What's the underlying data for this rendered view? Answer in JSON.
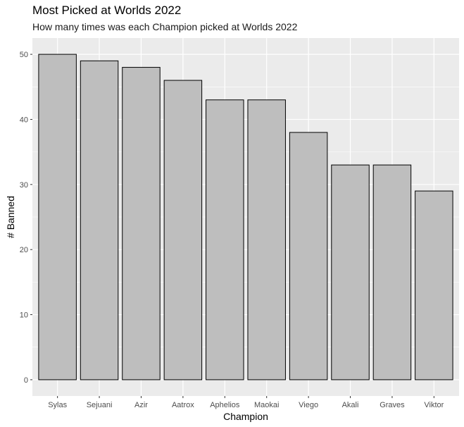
{
  "chart_data": {
    "type": "bar",
    "title": "Most Picked at Worlds 2022",
    "subtitle": "How many times was each Champion picked at Worlds 2022",
    "xlabel": "Champion",
    "ylabel": "# Banned",
    "categories": [
      "Sylas",
      "Sejuani",
      "Azir",
      "Aatrox",
      "Aphelios",
      "Maokai",
      "Viego",
      "Akali",
      "Graves",
      "Viktor"
    ],
    "values": [
      50,
      49,
      48,
      46,
      43,
      43,
      38,
      33,
      33,
      29
    ],
    "yticks": [
      0,
      10,
      20,
      30,
      40,
      50
    ],
    "ylim": [
      -2.5,
      52.5
    ],
    "grid": true,
    "legend": "none",
    "colors": {
      "panel": "#ebebeb",
      "grid": "#ffffff",
      "bar_fill": "#bebebe",
      "bar_stroke": "#000000"
    }
  }
}
